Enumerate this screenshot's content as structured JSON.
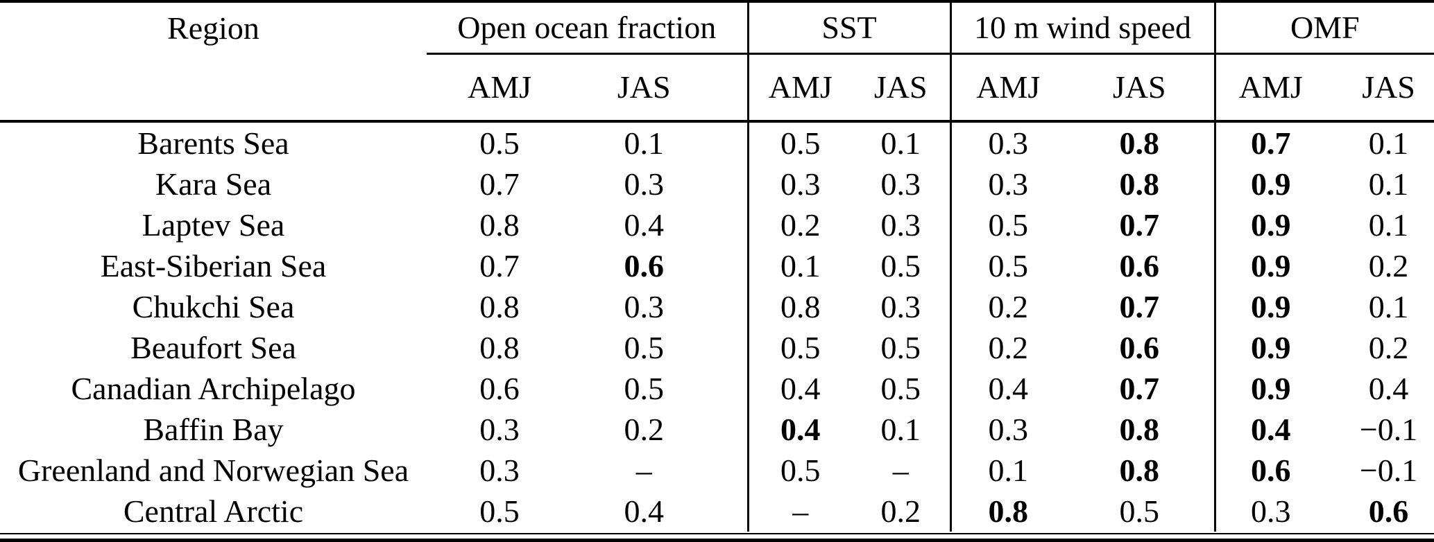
{
  "page": {
    "background": "#ffffff",
    "text_color": "#000000",
    "rule_color": "#000000"
  },
  "table": {
    "region_header": "Region",
    "groups": [
      {
        "label": "Open ocean fraction",
        "sub": [
          "AMJ",
          "JAS"
        ]
      },
      {
        "label": "SST",
        "sub": [
          "AMJ",
          "JAS"
        ]
      },
      {
        "label": "10 m wind speed",
        "sub": [
          "AMJ",
          "JAS"
        ]
      },
      {
        "label": "OMF",
        "sub": [
          "AMJ",
          "JAS"
        ]
      }
    ],
    "rows": [
      {
        "region": "Barents Sea",
        "cells": [
          {
            "v": "0.5"
          },
          {
            "v": "0.1"
          },
          {
            "v": "0.5"
          },
          {
            "v": "0.1"
          },
          {
            "v": "0.3"
          },
          {
            "v": "0.8",
            "b": true
          },
          {
            "v": "0.7",
            "b": true
          },
          {
            "v": "0.1"
          }
        ]
      },
      {
        "region": "Kara Sea",
        "cells": [
          {
            "v": "0.7"
          },
          {
            "v": "0.3"
          },
          {
            "v": "0.3"
          },
          {
            "v": "0.3"
          },
          {
            "v": "0.3"
          },
          {
            "v": "0.8",
            "b": true
          },
          {
            "v": "0.9",
            "b": true
          },
          {
            "v": "0.1"
          }
        ]
      },
      {
        "region": "Laptev Sea",
        "cells": [
          {
            "v": "0.8"
          },
          {
            "v": "0.4"
          },
          {
            "v": "0.2"
          },
          {
            "v": "0.3"
          },
          {
            "v": "0.5"
          },
          {
            "v": "0.7",
            "b": true
          },
          {
            "v": "0.9",
            "b": true
          },
          {
            "v": "0.1"
          }
        ]
      },
      {
        "region": "East-Siberian Sea",
        "cells": [
          {
            "v": "0.7"
          },
          {
            "v": "0.6",
            "b": true
          },
          {
            "v": "0.1"
          },
          {
            "v": "0.5"
          },
          {
            "v": "0.5"
          },
          {
            "v": "0.6",
            "b": true
          },
          {
            "v": "0.9",
            "b": true
          },
          {
            "v": "0.2"
          }
        ]
      },
      {
        "region": "Chukchi Sea",
        "cells": [
          {
            "v": "0.8"
          },
          {
            "v": "0.3"
          },
          {
            "v": "0.8"
          },
          {
            "v": "0.3"
          },
          {
            "v": "0.2"
          },
          {
            "v": "0.7",
            "b": true
          },
          {
            "v": "0.9",
            "b": true
          },
          {
            "v": "0.1"
          }
        ]
      },
      {
        "region": "Beaufort Sea",
        "cells": [
          {
            "v": "0.8"
          },
          {
            "v": "0.5"
          },
          {
            "v": "0.5"
          },
          {
            "v": "0.5"
          },
          {
            "v": "0.2"
          },
          {
            "v": "0.6",
            "b": true
          },
          {
            "v": "0.9",
            "b": true
          },
          {
            "v": "0.2"
          }
        ]
      },
      {
        "region": "Canadian Archipelago",
        "cells": [
          {
            "v": "0.6"
          },
          {
            "v": "0.5"
          },
          {
            "v": "0.4"
          },
          {
            "v": "0.5"
          },
          {
            "v": "0.4"
          },
          {
            "v": "0.7",
            "b": true
          },
          {
            "v": "0.9",
            "b": true
          },
          {
            "v": "0.4"
          }
        ]
      },
      {
        "region": "Baffin Bay",
        "cells": [
          {
            "v": "0.3"
          },
          {
            "v": "0.2"
          },
          {
            "v": "0.4",
            "b": true
          },
          {
            "v": "0.1"
          },
          {
            "v": "0.3"
          },
          {
            "v": "0.8",
            "b": true
          },
          {
            "v": "0.4",
            "b": true
          },
          {
            "v": "−0.1"
          }
        ]
      },
      {
        "region": "Greenland and Norwegian Sea",
        "cells": [
          {
            "v": "0.3"
          },
          {
            "v": "–"
          },
          {
            "v": "0.5"
          },
          {
            "v": "–"
          },
          {
            "v": "0.1"
          },
          {
            "v": "0.8",
            "b": true
          },
          {
            "v": "0.6",
            "b": true
          },
          {
            "v": "−0.1"
          }
        ]
      },
      {
        "region": "Central Arctic",
        "cells": [
          {
            "v": "0.5"
          },
          {
            "v": "0.4"
          },
          {
            "v": "–"
          },
          {
            "v": "0.2"
          },
          {
            "v": "0.8",
            "b": true
          },
          {
            "v": "0.5"
          },
          {
            "v": "0.3"
          },
          {
            "v": "0.6",
            "b": true
          }
        ]
      }
    ]
  }
}
